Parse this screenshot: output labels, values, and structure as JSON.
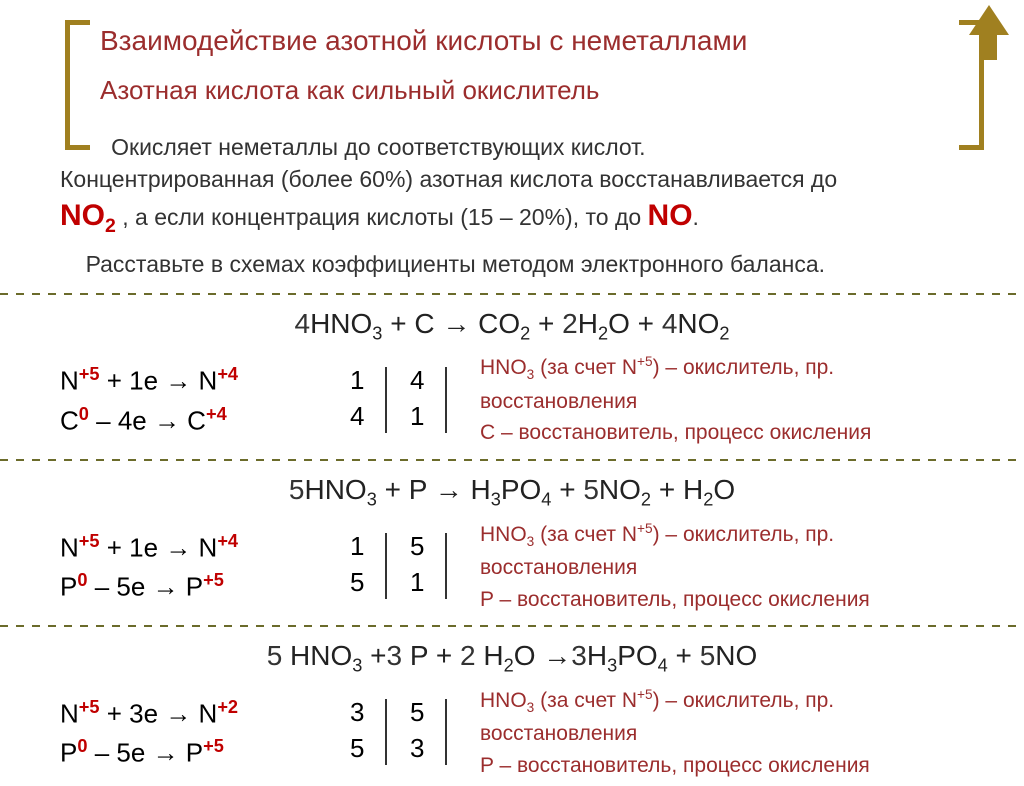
{
  "title_main": "Взаимодействие азотной кислоты с неметаллами",
  "subtitle": "Азотная кислота как сильный окислитель",
  "intro_line1": "Окисляет неметаллы до соответствующих кислот.",
  "intro_line2a": "Концентрированная (более 60%) азотная кислота восстанавливается до ",
  "intro_no2": "NO",
  "intro_no2_sub": "2",
  "intro_line2b": " , а если концентрация кислоты (15 – 20%), то до ",
  "intro_no": "NO",
  "intro_dot": ".",
  "task_line": "Расставьте в схемах коэффициенты методом электронного баланса.",
  "eq1": {
    "c1": "4",
    "t1": "HNO",
    "s1": "3",
    "t2": " + C → CO",
    "s2": "2",
    "t3": " + ",
    "c2": "2",
    "t4": "H",
    "s3": "2",
    "t5": "O + ",
    "c3": "4",
    "t6": "NO",
    "s4": "2"
  },
  "bal1": {
    "l1a": "N",
    "l1b": "+5",
    "l1c": " + 1e → N",
    "l1d": "+4",
    "l2a": "C",
    "l2b": "0",
    "l2c": " –  4e → C",
    "l2d": "+4",
    "n1": "1",
    "n2": "4",
    "n3": "4",
    "n4": "1",
    "note1a": "HNO",
    "note1b": "3",
    "note1c": " (за счет N",
    "note1d": "+5",
    "note1e": ") – окислитель, пр. восстановления",
    "note2": "C – восстановитель, процесс окисления"
  },
  "eq2": {
    "c1": "5",
    "t1": "HNO",
    "s1": "3",
    "t2": " + P → H",
    "s2": "3",
    "t3": "PO",
    "s3": "4",
    "t4": " + ",
    "c2": "5",
    "t5": "NO",
    "s4": "2",
    "t6": " + H",
    "s5": "2",
    "t7": "O"
  },
  "bal2": {
    "l1a": "N",
    "l1b": "+5",
    "l1c": " + 1e → N",
    "l1d": "+4",
    "l2a": "P",
    "l2b": "0",
    "l2c": " –  5e → P",
    "l2d": "+5",
    "n1": "1",
    "n2": "5",
    "n3": "5",
    "n4": "1",
    "note1a": "HNO",
    "note1b": "3",
    "note1c": " (за счет N",
    "note1d": "+5",
    "note1e": ") – окислитель, пр. восстановления",
    "note2": "P – восстановитель, процесс окисления"
  },
  "eq3": {
    "c1": "5",
    "t1": " HNO",
    "s1": "3",
    "t2": " +",
    "c2": "3",
    "t3": " P + ",
    "c3": "2",
    "t4": " H",
    "s2": "2",
    "t5": "O →",
    "c4": "3",
    "t6": "H",
    "s3": "3",
    "t7": "PO",
    "s4": "4",
    "t8": " + ",
    "c5": "5",
    "t9": "NO"
  },
  "bal3": {
    "l1a": "N",
    "l1b": "+5",
    "l1c": " + 3e → N",
    "l1d": "+2",
    "l2a": "P",
    "l2b": "0",
    "l2c": " –  5e → P",
    "l2d": "+5",
    "n1": "3",
    "n2": "5",
    "n3": "5",
    "n4": "3",
    "note1a": "HNO",
    "note1b": "3",
    "note1c": " (за счет N",
    "note1d": "+5",
    "note1e": ") – окислитель, пр. восстановления",
    "note2": "P – восстановитель, процесс окисления"
  },
  "colors": {
    "bracket": "#a08020",
    "title": "#9b2d2d",
    "red_bold": "#c00000",
    "divider": "#6b6b2b",
    "text": "#333333"
  }
}
